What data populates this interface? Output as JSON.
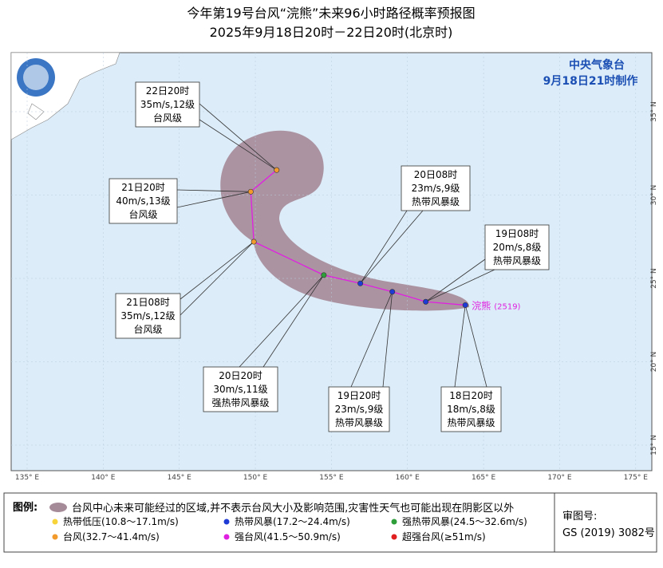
{
  "title": "今年第19号台风“浣熊”未来96小时路径概率预报图",
  "subtitle": "2025年9月18日20时－22日20时(北京时)",
  "agency": "中央气象台",
  "issued": "9月18日21时制作",
  "typhoon": {
    "name": "浣熊",
    "number": "(2519)"
  },
  "lon_ticks": [
    {
      "value": 135,
      "label": "135° E"
    },
    {
      "value": 140,
      "label": "140° E"
    },
    {
      "value": 145,
      "label": "145° E"
    },
    {
      "value": 150,
      "label": "150° E"
    },
    {
      "value": 155,
      "label": "155° E"
    },
    {
      "value": 160,
      "label": "160° E"
    },
    {
      "value": 165,
      "label": "165° E"
    },
    {
      "value": 170,
      "label": "170° E"
    },
    {
      "value": 175,
      "label": "175° E"
    }
  ],
  "lat_ticks": [
    {
      "value": 35,
      "label": "35° N"
    },
    {
      "value": 30,
      "label": "30° N"
    },
    {
      "value": 25,
      "label": "25° N"
    },
    {
      "value": 20,
      "label": "20° N"
    },
    {
      "value": 15,
      "label": "15° N"
    }
  ],
  "track": [
    {
      "time": "18日20时",
      "wind": "18m/s,8级",
      "grade": "热带风暴级",
      "lon": 163.8,
      "lat": 23.4,
      "color": "#1f3bd6"
    },
    {
      "time": "19日08时",
      "wind": "20m/s,8级",
      "grade": "热带风暴级",
      "lon": 161.2,
      "lat": 23.6,
      "color": "#1f3bd6"
    },
    {
      "time": "19日20时",
      "wind": "23m/s,9级",
      "grade": "热带风暴级",
      "lon": 159.0,
      "lat": 24.2,
      "color": "#1f3bd6"
    },
    {
      "time": "20日08时",
      "wind": "23m/s,9级",
      "grade": "热带风暴级",
      "lon": 156.9,
      "lat": 24.7,
      "color": "#1f3bd6"
    },
    {
      "time": "20日20时",
      "wind": "30m/s,11级",
      "grade": "强热带风暴级",
      "lon": 154.5,
      "lat": 25.2,
      "color": "#2e9e3a"
    },
    {
      "time": "21日08时",
      "wind": "35m/s,12级",
      "grade": "台风级",
      "lon": 149.9,
      "lat": 27.2,
      "color": "#f29b2c"
    },
    {
      "time": "21日20时",
      "wind": "40m/s,13级",
      "grade": "台风级",
      "lon": 149.7,
      "lat": 30.2,
      "color": "#f29b2c"
    },
    {
      "time": "22日20时",
      "wind": "35m/s,12级",
      "grade": "台风级",
      "lon": 151.4,
      "lat": 31.5,
      "color": "#f29b2c"
    }
  ],
  "legend": {
    "title": "图例:",
    "cone": "台风中心未来可能经过的区域,并不表示台风大小及影响范围,灾害性天气也可能出现在阴影区以外",
    "items": [
      {
        "label": "热带低压(10.8～17.1m/s)",
        "color": "#f7d43a"
      },
      {
        "label": "热带风暴(17.2～24.4m/s)",
        "color": "#1f3bd6"
      },
      {
        "label": "强热带风暴(24.5～32.6m/s)",
        "color": "#2e9e3a"
      },
      {
        "label": "台风(32.7～41.4m/s)",
        "color": "#f29b2c"
      },
      {
        "label": "强台风(41.5～50.9m/s)",
        "color": "#e020e0"
      },
      {
        "label": "超强台风(≥51m/s)",
        "color": "#e02020"
      }
    ]
  },
  "review": {
    "label": "审图号:",
    "number": "GS (2019) 3082号"
  }
}
